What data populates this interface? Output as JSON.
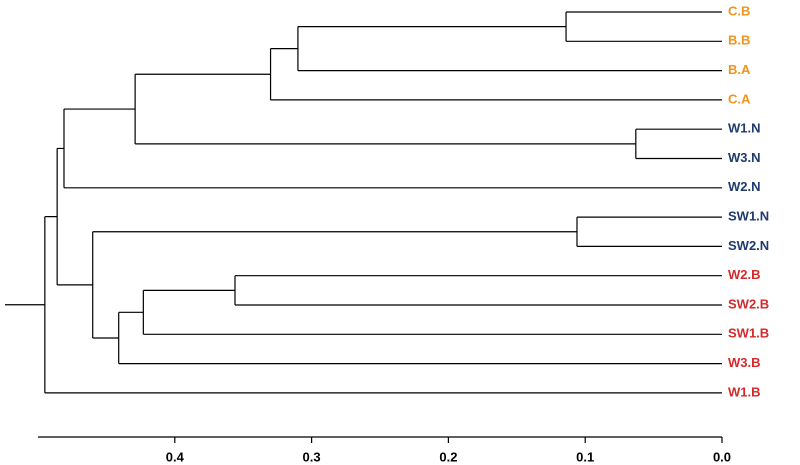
{
  "chart_data": {
    "type": "dendrogram",
    "xlim": [
      0.5,
      0
    ],
    "xticks": [
      0.4,
      0.3,
      0.2,
      0.1,
      {
        "value": 0,
        "label": "0.0"
      }
    ],
    "line_color": "#000000",
    "tree": {
      "height": 0.495,
      "children": [
        {
          "height": 0.486,
          "children": [
            {
              "height": 0.481,
              "children": [
                {
                  "height": 0.429,
                  "children": [
                    {
                      "height": 0.33,
                      "children": [
                        {
                          "height": 0.31,
                          "children": [
                            {
                              "height": 0.114,
                              "children": [
                                {
                                  "label": "C.B",
                                  "color": "#f0941c"
                                },
                                {
                                  "label": "B.B",
                                  "color": "#f0941c"
                                }
                              ]
                            },
                            {
                              "label": "B.A",
                              "color": "#f0941c"
                            }
                          ]
                        },
                        {
                          "label": "C.A",
                          "color": "#f0941c"
                        }
                      ]
                    },
                    {
                      "height": 0.063,
                      "children": [
                        {
                          "label": "W1.N",
                          "color": "#1f3a6e"
                        },
                        {
                          "label": "W3.N",
                          "color": "#1f3a6e"
                        }
                      ]
                    }
                  ]
                },
                {
                  "label": "W2.N",
                  "color": "#1f3a6e"
                }
              ]
            },
            {
              "height": 0.46,
              "children": [
                {
                  "height": 0.106,
                  "children": [
                    {
                      "label": "SW1.N",
                      "color": "#1f3a6e"
                    },
                    {
                      "label": "SW2.N",
                      "color": "#1f3a6e"
                    }
                  ]
                },
                {
                  "height": 0.441,
                  "children": [
                    {
                      "height": 0.423,
                      "children": [
                        {
                          "height": 0.356,
                          "children": [
                            {
                              "label": "W2.B",
                              "color": "#d42a2a"
                            },
                            {
                              "label": "SW2.B",
                              "color": "#d42a2a"
                            }
                          ]
                        },
                        {
                          "label": "SW1.B",
                          "color": "#d42a2a"
                        }
                      ]
                    },
                    {
                      "label": "W3.B",
                      "color": "#d42a2a"
                    }
                  ]
                }
              ]
            }
          ]
        },
        {
          "label": "W1.B",
          "color": "#d42a2a"
        }
      ]
    }
  }
}
